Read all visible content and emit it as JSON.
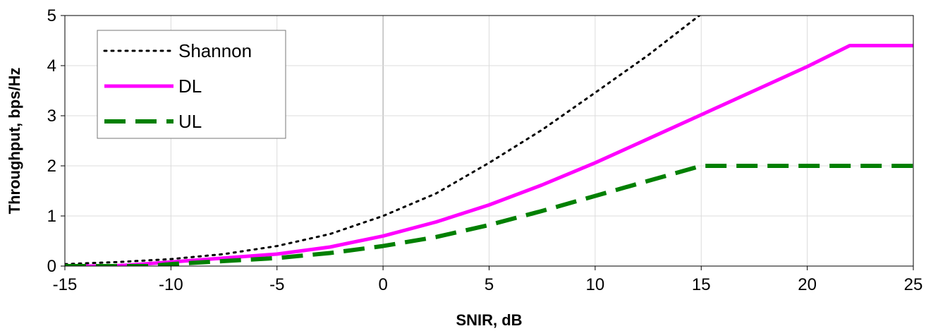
{
  "chart_data": {
    "type": "line",
    "title": "",
    "xlabel": "SNIR, dB",
    "ylabel": "Throughput, bps/Hz",
    "xlim": [
      -15,
      25
    ],
    "ylim": [
      0,
      5
    ],
    "x_ticks": [
      -15,
      -10,
      -5,
      0,
      5,
      10,
      15,
      20,
      25
    ],
    "y_ticks": [
      0,
      1,
      2,
      3,
      4,
      5
    ],
    "grid": true,
    "legend": "top-left",
    "series": [
      {
        "name": "Shannon",
        "style": "dotted",
        "color": "#000000",
        "x": [
          -15,
          -12.5,
          -10,
          -7.5,
          -5,
          -2.5,
          0,
          2.5,
          5,
          7.5,
          10,
          12.5,
          15
        ],
        "y": [
          0.04,
          0.08,
          0.14,
          0.24,
          0.4,
          0.64,
          1.0,
          1.45,
          2.06,
          2.72,
          3.46,
          4.21,
          5.03
        ]
      },
      {
        "name": "DL",
        "style": "solid",
        "color": "#ff00ff",
        "x": [
          -15,
          -13,
          -12,
          -10,
          -7.5,
          -5,
          -2.5,
          0,
          2.5,
          5,
          7.5,
          10,
          12.5,
          15,
          17.5,
          20,
          22,
          25
        ],
        "y": [
          0,
          0,
          0.02,
          0.08,
          0.16,
          0.24,
          0.38,
          0.6,
          0.88,
          1.22,
          1.62,
          2.06,
          2.54,
          3.02,
          3.5,
          3.98,
          4.4,
          4.4
        ]
      },
      {
        "name": "UL",
        "style": "dashed",
        "color": "#008000",
        "x": [
          -15,
          -11,
          -10,
          -7.5,
          -5,
          -2.5,
          0,
          2.5,
          5,
          7.5,
          10,
          12.5,
          15,
          25
        ],
        "y": [
          0,
          0,
          0.04,
          0.1,
          0.16,
          0.26,
          0.4,
          0.58,
          0.82,
          1.1,
          1.4,
          1.7,
          2.0,
          2.0
        ]
      }
    ]
  }
}
